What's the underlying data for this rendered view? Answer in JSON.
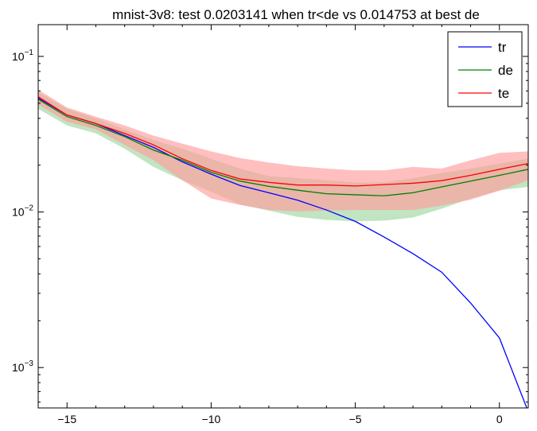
{
  "chart_data": {
    "type": "line",
    "title": "mnist-3v8: test 0.0203141 when tr<de vs 0.014753 at best de",
    "xlabel": "",
    "ylabel": "",
    "xlim": [
      -16,
      1
    ],
    "ylim": [
      0.00055,
      0.16
    ],
    "yscale": "log",
    "x_ticks": [
      -15,
      -10,
      -5,
      0
    ],
    "x_tick_labels": [
      "−15",
      "−10",
      "−5",
      "0"
    ],
    "y_ticks": [
      0.001,
      0.01,
      0.1
    ],
    "y_tick_labels": [
      {
        "base": "10",
        "exp": "−3"
      },
      {
        "base": "10",
        "exp": "−2"
      },
      {
        "base": "10",
        "exp": "−1"
      }
    ],
    "legend_position": "top-right",
    "x": [
      -16,
      -15,
      -14,
      -13,
      -12,
      -11,
      -10,
      -9,
      -8,
      -7,
      -6,
      -5,
      -4,
      -3,
      -2,
      -1,
      0,
      1
    ],
    "series": [
      {
        "name": "tr",
        "color": "#0000ff",
        "values": [
          0.054,
          0.042,
          0.037,
          0.031,
          0.026,
          0.021,
          0.0175,
          0.0148,
          0.0133,
          0.0119,
          0.0103,
          0.0087,
          0.0069,
          0.0054,
          0.0041,
          0.0026,
          0.00155,
          0.00052
        ]
      },
      {
        "name": "de",
        "color": "#008000",
        "band_color": "#9fd69f",
        "values": [
          0.053,
          0.041,
          0.036,
          0.0305,
          0.025,
          0.0215,
          0.018,
          0.0158,
          0.0146,
          0.0138,
          0.0131,
          0.0129,
          0.0127,
          0.0133,
          0.0145,
          0.0158,
          0.0172,
          0.0188
        ],
        "lower": [
          0.046,
          0.036,
          0.032,
          0.0255,
          0.0195,
          0.016,
          0.0135,
          0.0112,
          0.0102,
          0.0093,
          0.0089,
          0.0087,
          0.0088,
          0.0092,
          0.0105,
          0.0122,
          0.0138,
          0.0145
        ],
        "upper": [
          0.059,
          0.046,
          0.04,
          0.034,
          0.029,
          0.0255,
          0.022,
          0.019,
          0.017,
          0.0165,
          0.016,
          0.0155,
          0.0155,
          0.0165,
          0.0178,
          0.019,
          0.0205,
          0.022
        ]
      },
      {
        "name": "te",
        "color": "#ff0000",
        "band_color": "#ff9c9c",
        "values": [
          0.055,
          0.042,
          0.037,
          0.032,
          0.027,
          0.022,
          0.0185,
          0.0163,
          0.0155,
          0.0149,
          0.0149,
          0.0147,
          0.015,
          0.0153,
          0.0159,
          0.0172,
          0.0188,
          0.0205
        ],
        "lower": [
          0.049,
          0.038,
          0.034,
          0.027,
          0.0215,
          0.016,
          0.0122,
          0.0111,
          0.0103,
          0.0101,
          0.0102,
          0.0103,
          0.0103,
          0.0103,
          0.011,
          0.012,
          0.0137,
          0.016
        ],
        "upper": [
          0.061,
          0.047,
          0.041,
          0.036,
          0.031,
          0.0275,
          0.0245,
          0.0222,
          0.0208,
          0.0197,
          0.019,
          0.0185,
          0.0185,
          0.0195,
          0.019,
          0.0215,
          0.024,
          0.0245
        ]
      }
    ]
  }
}
